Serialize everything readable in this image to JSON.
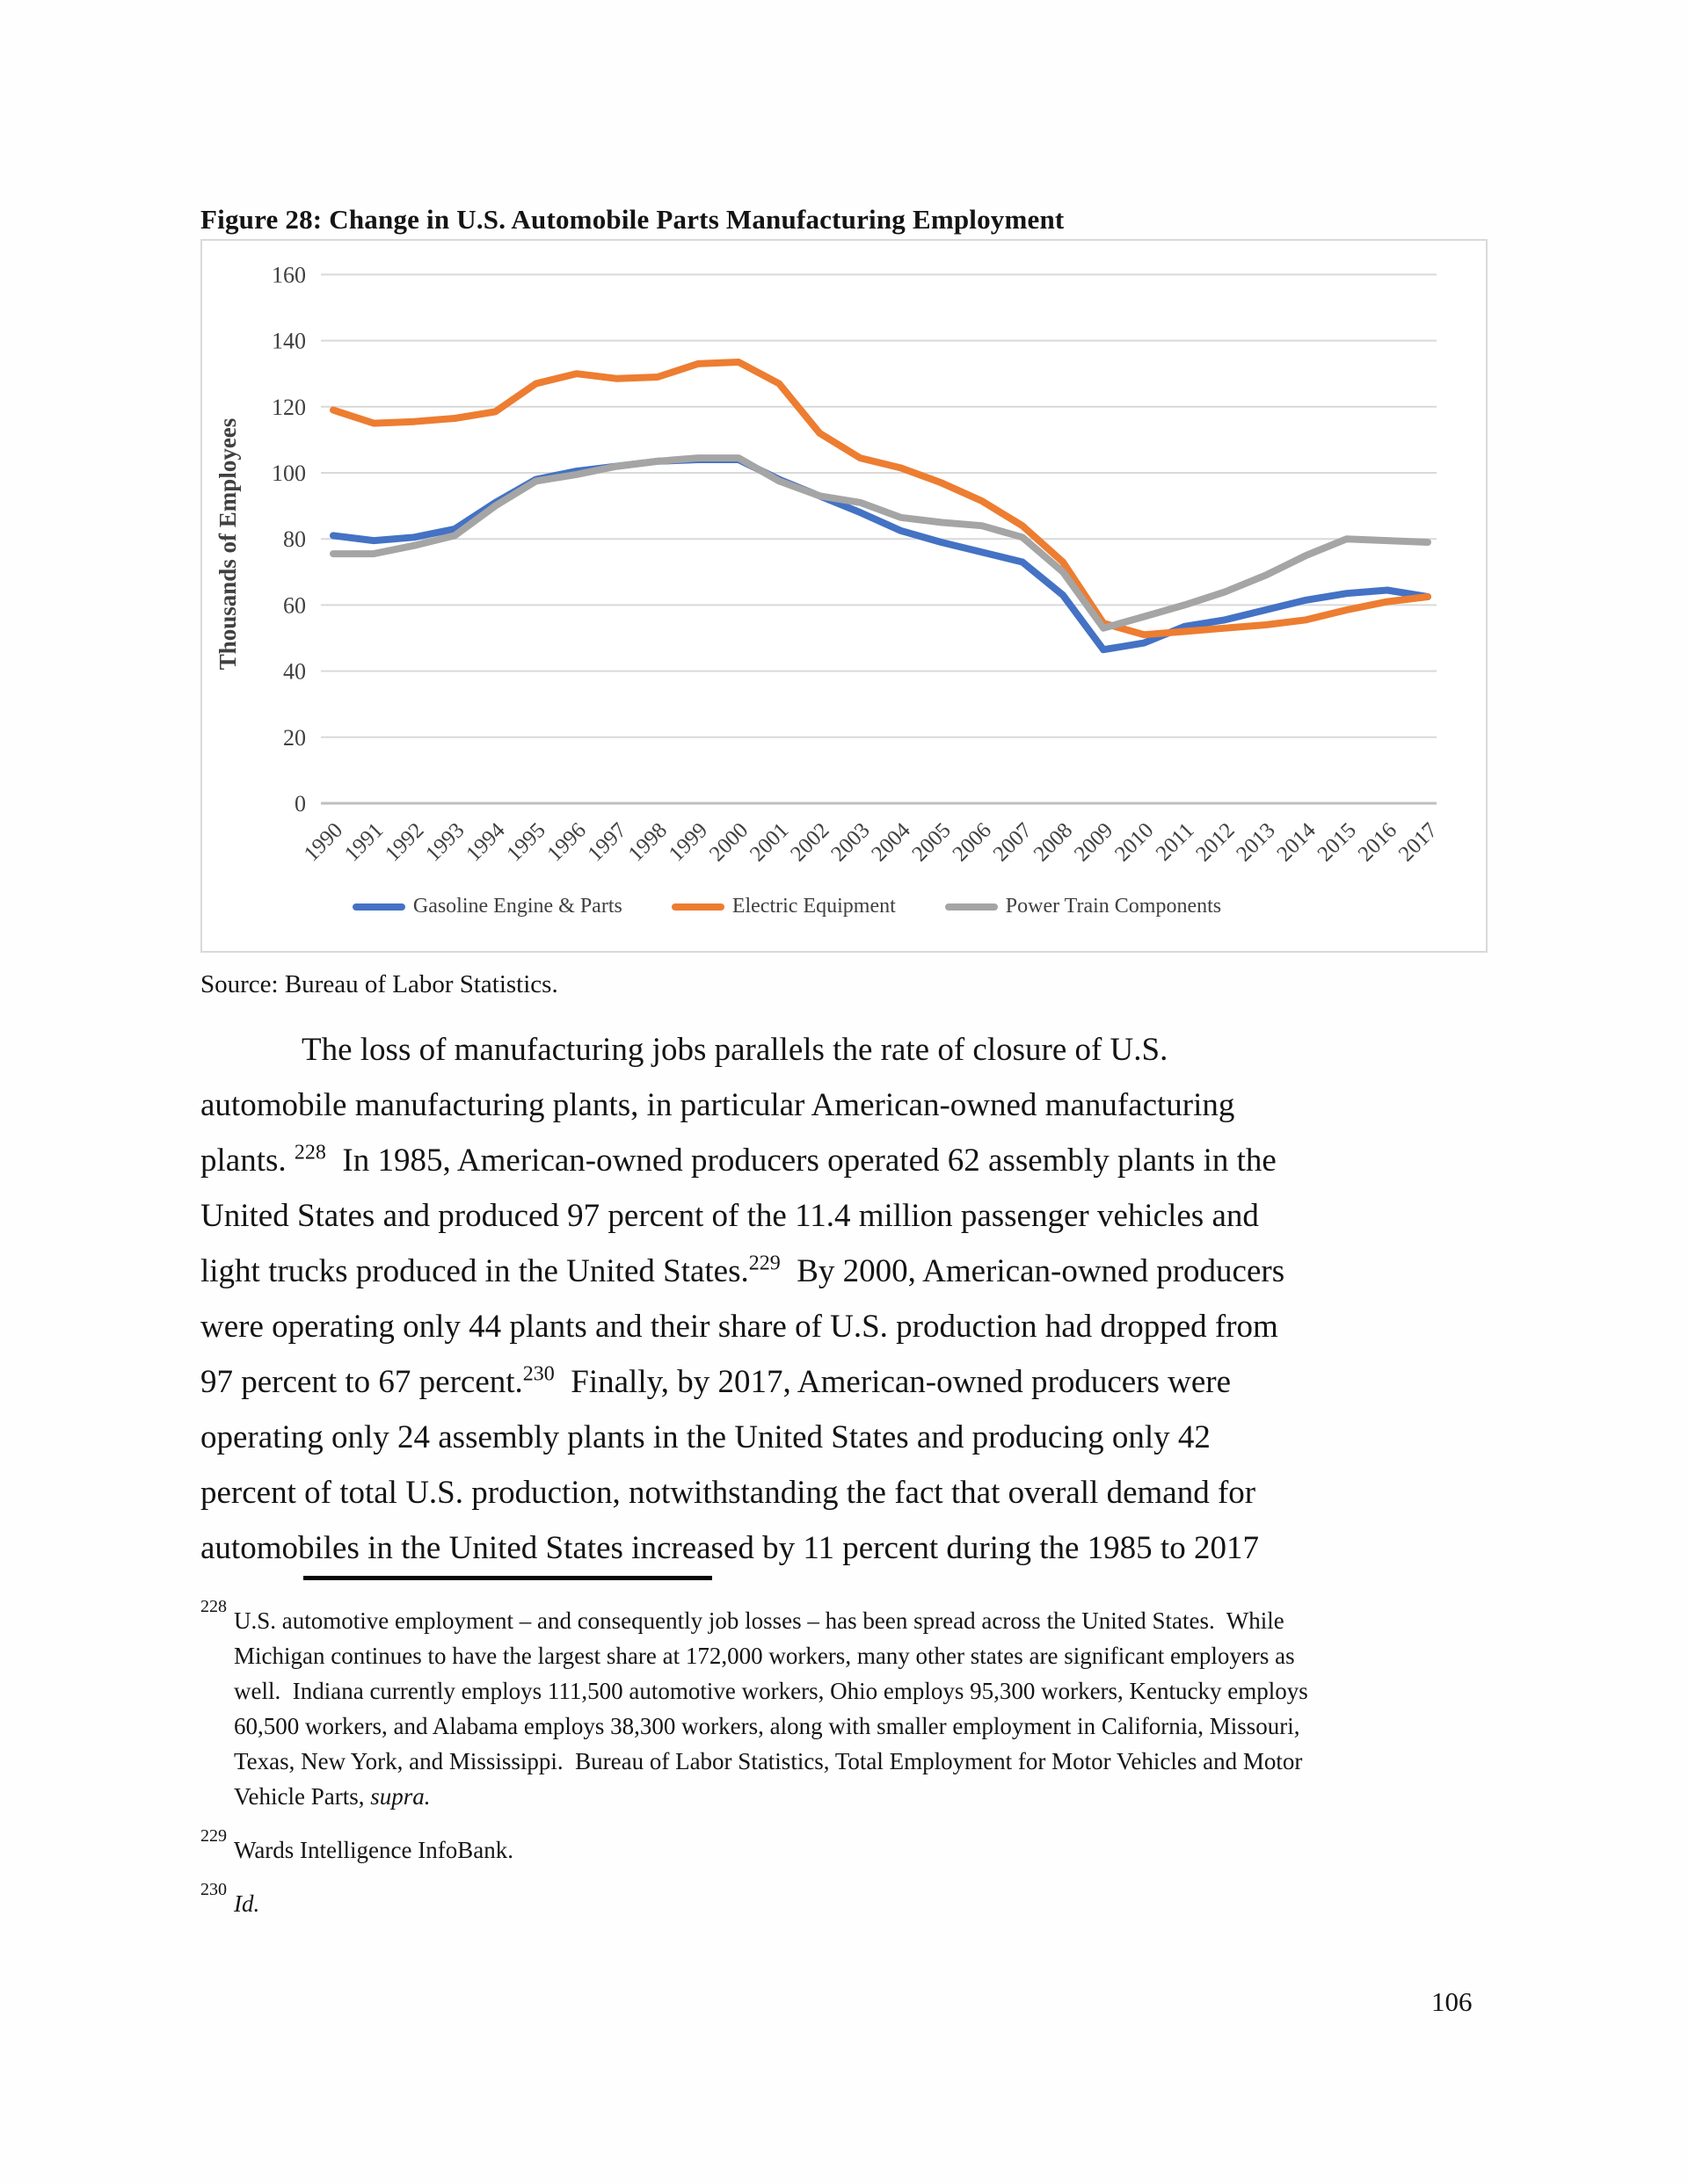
{
  "page": {
    "number": "106"
  },
  "figure": {
    "title": "Figure 28: Change in U.S. Automobile Parts Manufacturing Employment",
    "source": "Source: Bureau of Labor Statistics."
  },
  "chart_data": {
    "type": "line",
    "title": "Figure 28: Change in U.S. Automobile Parts Manufacturing Employment",
    "xlabel": "",
    "ylabel": "Thousands of Employees",
    "ylim": [
      0,
      160
    ],
    "ytick_step": 20,
    "grid": true,
    "legend_position": "bottom",
    "x": [
      1990,
      1991,
      1992,
      1993,
      1994,
      1995,
      1996,
      1997,
      1998,
      1999,
      2000,
      2001,
      2002,
      2003,
      2004,
      2005,
      2006,
      2007,
      2008,
      2009,
      2010,
      2011,
      2012,
      2013,
      2014,
      2015,
      2016,
      2017
    ],
    "series": [
      {
        "name": "Gasoline Engine & Parts",
        "color": "#4472C4",
        "values": [
          81,
          79.5,
          80.5,
          83,
          91,
          98,
          100.5,
          102,
          103.5,
          104,
          104,
          98,
          93,
          88,
          82.5,
          79,
          76,
          73,
          63,
          46.5,
          48.5,
          53.5,
          55.5,
          58.5,
          61.5,
          63.5,
          64.5,
          62.5
        ]
      },
      {
        "name": "Electric Equipment",
        "color": "#ED7D31",
        "values": [
          119,
          115,
          115.5,
          116.5,
          118.5,
          127,
          130,
          128.5,
          129,
          133,
          133.5,
          127,
          112,
          104.5,
          101.5,
          97,
          91.5,
          84,
          73,
          54.5,
          51,
          52,
          53,
          54,
          55.5,
          58.5,
          61,
          62.5
        ]
      },
      {
        "name": "Power Train Components",
        "color": "#A5A5A5",
        "values": [
          75.5,
          75.5,
          78,
          81,
          90,
          97.5,
          99.5,
          102,
          103.5,
          104.5,
          104.5,
          97.5,
          93,
          91,
          86.5,
          85,
          84,
          80.5,
          70,
          53,
          56.5,
          60,
          64,
          69,
          75,
          80,
          79.5,
          79
        ]
      }
    ],
    "axis_color": "#404040",
    "gridline_color": "#d9d9d9",
    "zeroline_color": "#bfbfbf"
  },
  "paragraph": {
    "lines": [
      [
        {
          "t": "The loss of manufacturing jobs parallels the rate of closure of U.S."
        }
      ],
      [
        {
          "t": "automobile manufacturing plants, in particular American-owned manufacturing"
        }
      ],
      [
        {
          "t": "plants. "
        },
        {
          "s": "228"
        },
        {
          "t": "  In 1985, American-owned producers operated 62 assembly plants in the"
        }
      ],
      [
        {
          "t": "United States and produced 97 percent of the 11.4 million passenger vehicles and"
        }
      ],
      [
        {
          "t": "light trucks produced in the United States."
        },
        {
          "s": "229"
        },
        {
          "t": "  By 2000, American-owned producers"
        }
      ],
      [
        {
          "t": "were operating only 44 plants and their share of U.S. production had dropped from"
        }
      ],
      [
        {
          "t": "97 percent to 67 percent."
        },
        {
          "s": "230"
        },
        {
          "t": "  Finally, by 2017, American-owned producers were"
        }
      ],
      [
        {
          "t": "operating only 24 assembly plants in the United States and producing only 42"
        }
      ],
      [
        {
          "t": "percent of total U.S. production, notwithstanding the fact that overall demand for"
        }
      ],
      [
        {
          "t": "automobiles in the United States increased by 11 percent during the 1985 to 2017"
        }
      ]
    ]
  },
  "footnotes": [
    {
      "marker": "228",
      "lines": [
        [
          {
            "t": "U.S. automotive employment – and consequently job losses – has been spread across the United States.  While"
          }
        ],
        [
          {
            "t": "Michigan continues to have the largest share at 172,000 workers, many other states are significant employers as"
          }
        ],
        [
          {
            "t": "well.  Indiana currently employs 111,500 automotive workers, Ohio employs 95,300 workers, Kentucky employs"
          }
        ],
        [
          {
            "t": "60,500 workers, and Alabama employs 38,300 workers, along with smaller employment in California, Missouri,"
          }
        ],
        [
          {
            "t": "Texas, New York, and Mississippi.  Bureau of Labor Statistics, Total Employment for Motor Vehicles and Motor"
          }
        ],
        [
          {
            "t": "Vehicle Parts, "
          },
          {
            "i": "supra."
          }
        ]
      ]
    },
    {
      "marker": "229",
      "lines": [
        [
          {
            "t": "Wards Intelligence InfoBank."
          }
        ]
      ]
    },
    {
      "marker": "230",
      "lines": [
        [
          {
            "i": "Id."
          }
        ]
      ]
    }
  ]
}
